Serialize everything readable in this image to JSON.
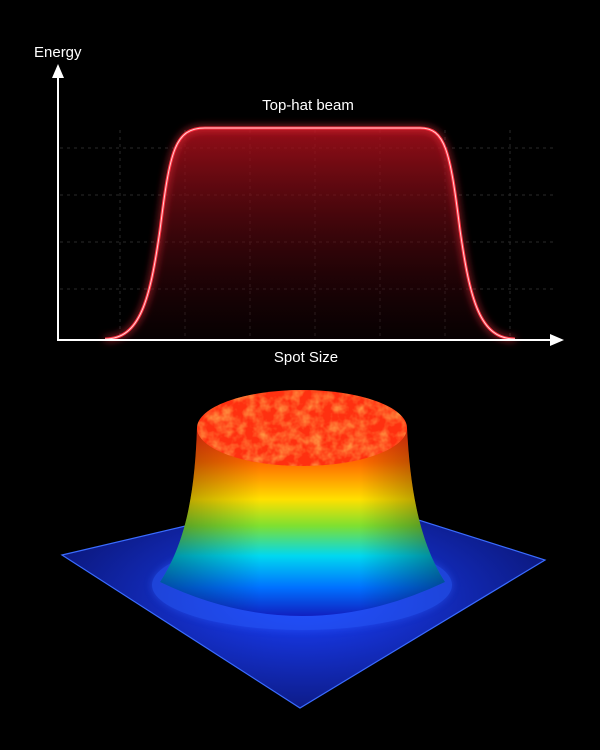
{
  "axes": {
    "y_label": "Energy",
    "x_label": "Spot Size"
  },
  "curve_label": "Top-hat beam"
}
